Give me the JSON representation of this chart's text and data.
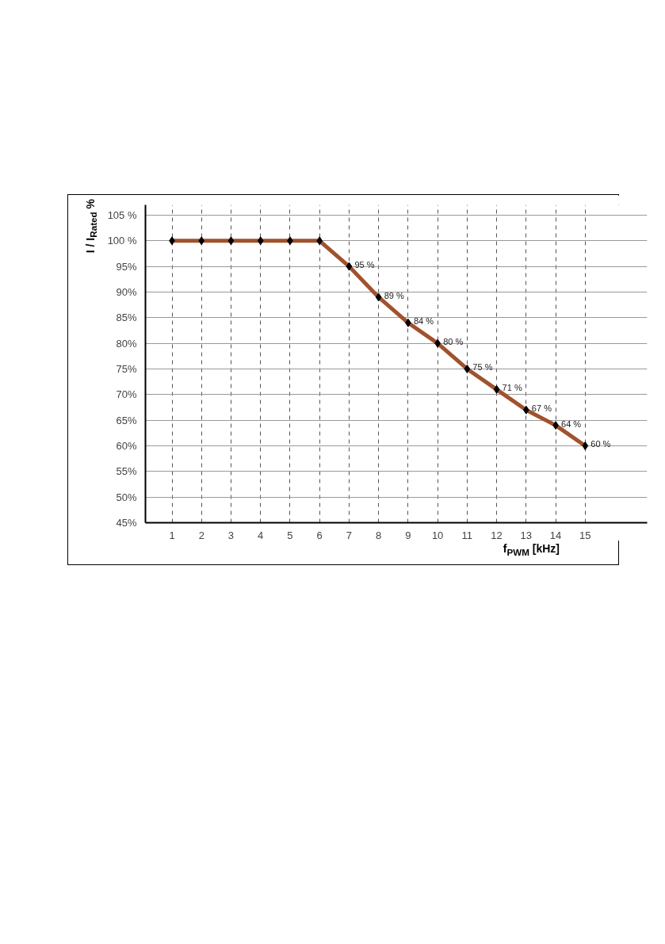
{
  "chart_data": {
    "type": "line",
    "xlabel": "f$_{PWM}$ [kHz]",
    "ylabel": "I / I$_{Rated}$ %",
    "x": [
      1,
      2,
      3,
      4,
      5,
      6,
      7,
      8,
      9,
      10,
      11,
      12,
      13,
      14,
      15
    ],
    "series": [
      {
        "color": "#a0522d",
        "values": [
          100,
          100,
          100,
          100,
          100,
          100,
          95,
          89,
          84,
          80,
          75,
          71,
          67,
          64,
          60
        ],
        "value_labels": [
          null,
          null,
          null,
          null,
          null,
          null,
          "95 %",
          "89 %",
          "84 %",
          "80 %",
          "75 %",
          "71 %",
          "67 %",
          "64 %",
          "60 %"
        ]
      }
    ],
    "marker": "diamond",
    "line_style": "solid",
    "grid": true,
    "xlim": [
      0.1,
      17.1
    ],
    "ylim": [
      45,
      107
    ],
    "xticks": [
      1,
      2,
      3,
      4,
      5,
      6,
      7,
      8,
      9,
      10,
      11,
      12,
      13,
      14,
      15
    ],
    "yticks": [
      {
        "value": 45,
        "label": "45%"
      },
      {
        "value": 50,
        "label": "50%"
      },
      {
        "value": 55,
        "label": "55%"
      },
      {
        "value": 60,
        "label": "60%"
      },
      {
        "value": 65,
        "label": "65%"
      },
      {
        "value": 70,
        "label": "70%"
      },
      {
        "value": 75,
        "label": "75%"
      },
      {
        "value": 80,
        "label": "80%"
      },
      {
        "value": 85,
        "label": "85%"
      },
      {
        "value": 90,
        "label": "90%"
      },
      {
        "value": 95,
        "label": "95%"
      },
      {
        "value": 100,
        "label": "100 %"
      },
      {
        "value": 105,
        "label": "105 %"
      }
    ]
  }
}
